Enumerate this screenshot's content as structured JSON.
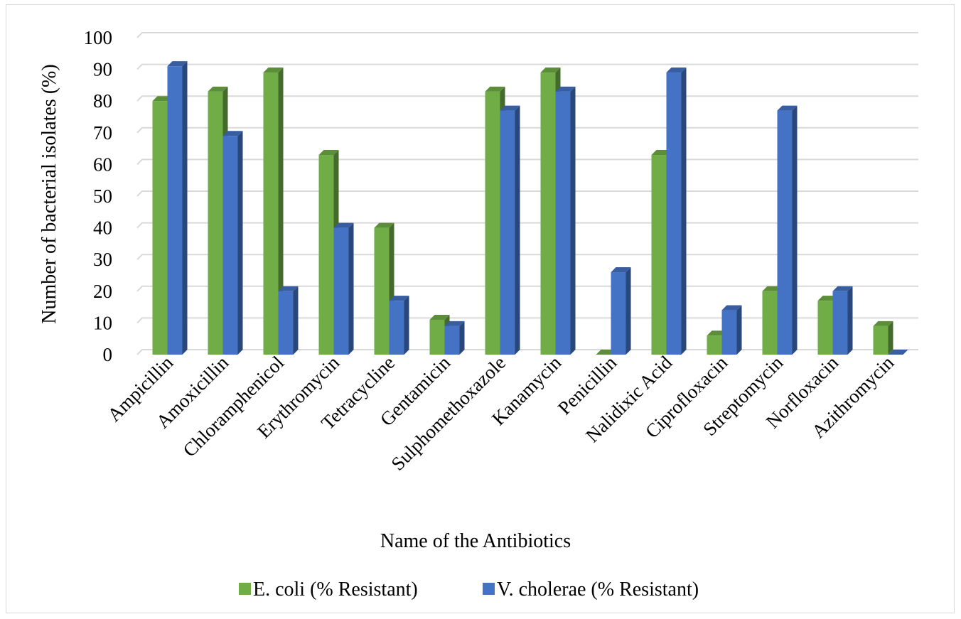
{
  "chart_data": {
    "type": "bar",
    "title": "",
    "xlabel": "Name of the Antibiotics",
    "ylabel": "Number of bacterial isolates (%)",
    "ylim": [
      0,
      100
    ],
    "yticks": [
      "0",
      "10",
      "20",
      "30",
      "40",
      "50",
      "60",
      "70",
      "80",
      "90",
      "100"
    ],
    "grid": true,
    "legend_position": "bottom",
    "style": "3d-clustered",
    "categories": [
      "Ampicillin",
      "Amoxicillin",
      "Chloramphenicol",
      "Erythromycin",
      "Tetracycline",
      "Gentamicin",
      "Sulphomethoxazole",
      "Kanamycin",
      "Penicillin",
      "Nalidixic Acid",
      "Ciprofloxacin",
      "Streptomycin",
      "Norfloxacin",
      "Azithromycin"
    ],
    "series": [
      {
        "name": "E. coli (% Resistant)",
        "color": "#70ad47",
        "values": [
          80,
          83,
          89,
          63,
          40,
          11,
          83,
          89,
          0,
          63,
          6,
          20,
          17,
          9
        ]
      },
      {
        "name": "V. cholerae (% Resistant)",
        "color": "#4472c4",
        "values": [
          91,
          69,
          20,
          40,
          17,
          9,
          77,
          83,
          26,
          89,
          14,
          77,
          20,
          0
        ]
      }
    ]
  }
}
